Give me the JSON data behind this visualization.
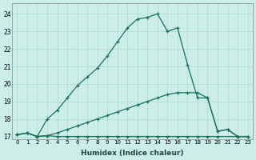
{
  "xlabel": "Humidex (Indice chaleur)",
  "background_color": "#cceee8",
  "grid_color": "#b0d8d4",
  "line_color": "#1a7060",
  "x_values": [
    0,
    1,
    2,
    3,
    4,
    5,
    6,
    7,
    8,
    9,
    10,
    11,
    12,
    13,
    14,
    15,
    16,
    17,
    18,
    19,
    20,
    21,
    22,
    23
  ],
  "line_flat_x": [
    0,
    1,
    2,
    3,
    4,
    5,
    6,
    7,
    8,
    9,
    10,
    11,
    12,
    13,
    14,
    15,
    16,
    17,
    18,
    19,
    20,
    22,
    23
  ],
  "line_flat_y": [
    17.1,
    17.2,
    17.0,
    17.05,
    17.0,
    17.0,
    17.0,
    17.0,
    17.0,
    17.0,
    17.0,
    17.0,
    17.0,
    17.0,
    17.0,
    17.0,
    17.0,
    17.0,
    17.0,
    17.0,
    17.0,
    17.0,
    17.0
  ],
  "line_diag_x": [
    0,
    1,
    2,
    3,
    4,
    5,
    6,
    7,
    8,
    9,
    10,
    11,
    12,
    13,
    14,
    15,
    16,
    17,
    18,
    19,
    20,
    21,
    22,
    23
  ],
  "line_diag_y": [
    17.1,
    17.2,
    17.0,
    17.05,
    17.2,
    17.4,
    17.6,
    17.8,
    18.0,
    18.2,
    18.4,
    18.6,
    18.8,
    19.0,
    19.2,
    19.4,
    19.5,
    19.5,
    19.5,
    19.2,
    17.3,
    17.4,
    17.0,
    17.0
  ],
  "line_peak_x": [
    0,
    1,
    2,
    3,
    4,
    5,
    6,
    7,
    8,
    9,
    10,
    11,
    12,
    13,
    14,
    15,
    16,
    17,
    18,
    19,
    20,
    21,
    22,
    23
  ],
  "line_peak_y": [
    17.1,
    17.2,
    17.0,
    18.0,
    18.5,
    19.2,
    19.9,
    20.4,
    20.9,
    21.6,
    22.4,
    23.2,
    23.7,
    23.8,
    24.0,
    23.0,
    23.2,
    21.1,
    19.2,
    19.2,
    17.3,
    17.4,
    17.0,
    17.0
  ],
  "ylim": [
    16.85,
    24.6
  ],
  "yticks": [
    17,
    18,
    19,
    20,
    21,
    22,
    23,
    24
  ],
  "xlim": [
    -0.5,
    23.5
  ]
}
